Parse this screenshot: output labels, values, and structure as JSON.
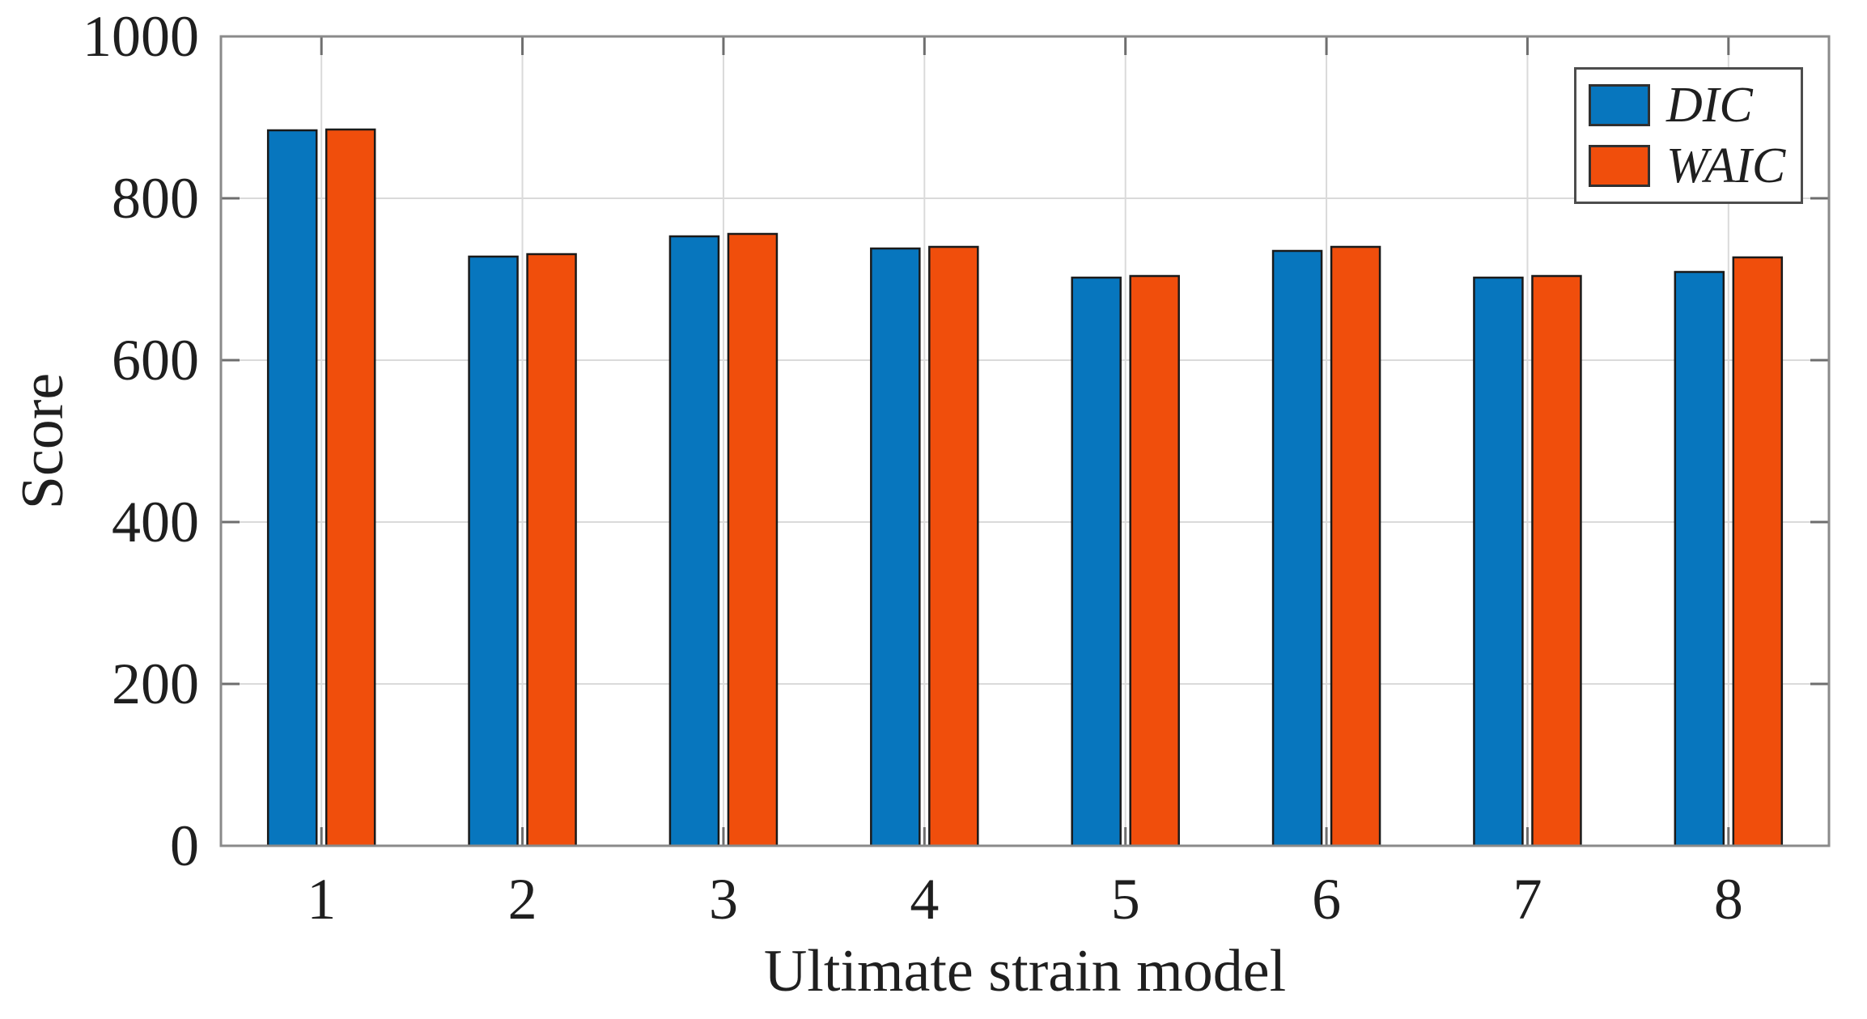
{
  "figure": {
    "background": "#ffffff"
  },
  "chart_data": {
    "type": "bar",
    "title": "",
    "xlabel": "Ultimate strain model",
    "ylabel": "Score",
    "categories": [
      "1",
      "2",
      "3",
      "4",
      "5",
      "6",
      "7",
      "8"
    ],
    "series": [
      {
        "name": "DIC",
        "color": "#0776BE",
        "edge_color": "#1a1a1a",
        "values": [
          884,
          728,
          753,
          738,
          702,
          735,
          702,
          709
        ]
      },
      {
        "name": "WAIC",
        "color": "#F04E0C",
        "edge_color": "#1a1a1a",
        "values": [
          885,
          731,
          756,
          740,
          704,
          740,
          704,
          727
        ]
      }
    ],
    "ylim": [
      0,
      1000
    ],
    "yticks": [
      0,
      200,
      400,
      600,
      800,
      1000
    ],
    "grid": true,
    "legend_position": "top-right",
    "axis_color": "#8a8a8a",
    "grid_color": "#dadada",
    "tick_color": "#6e6e6e",
    "text_color": "#1f1f1f"
  }
}
